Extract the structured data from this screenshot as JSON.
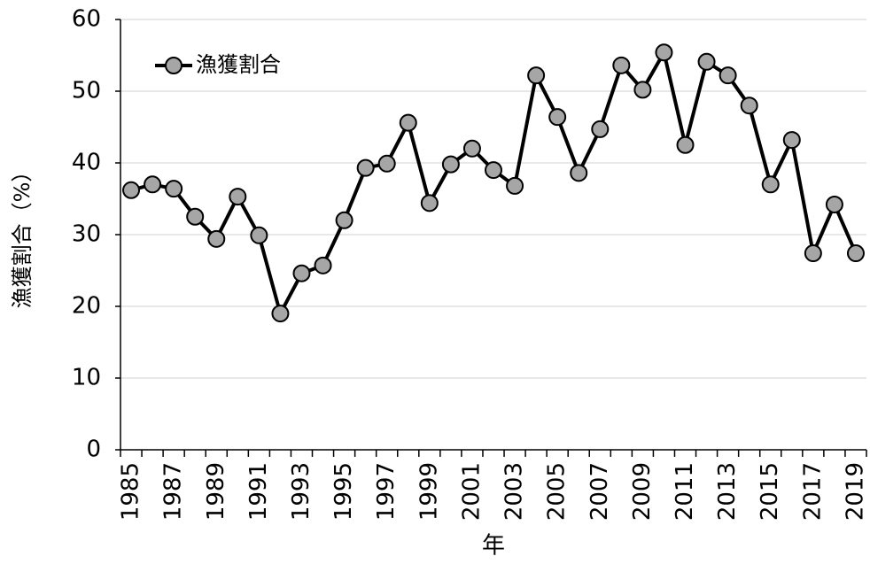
{
  "chart_data": {
    "type": "line",
    "y_label": "漁獲割合（%）",
    "x_label": "年",
    "categories": [
      "1985",
      null,
      "1987",
      null,
      "1989",
      null,
      "1991",
      null,
      "1993",
      null,
      "1995",
      null,
      "1997",
      null,
      "1999",
      null,
      "2001",
      null,
      "2003",
      null,
      "2005",
      null,
      "2007",
      null,
      "2009",
      null,
      "2011",
      null,
      "2013",
      null,
      "2015",
      null,
      "2017",
      null,
      "2019"
    ],
    "series": [
      {
        "name": "漁獲割合",
        "color": "#000000",
        "marker_color": "#a6a6a6",
        "values": [
          36.2,
          37.0,
          36.4,
          32.5,
          29.4,
          35.3,
          29.9,
          19.0,
          24.6,
          25.7,
          32.0,
          39.3,
          39.9,
          45.6,
          34.4,
          39.8,
          42.0,
          39.0,
          36.8,
          52.2,
          46.4,
          38.6,
          44.7,
          53.6,
          50.2,
          55.4,
          42.5,
          54.1,
          52.2,
          48.0,
          37.0,
          43.2,
          27.4,
          34.2,
          27.4
        ]
      }
    ],
    "ylim": [
      0,
      60
    ],
    "yticks": [
      0,
      10,
      20,
      30,
      40,
      50,
      60
    ],
    "grid": true,
    "legend": "top-left"
  }
}
